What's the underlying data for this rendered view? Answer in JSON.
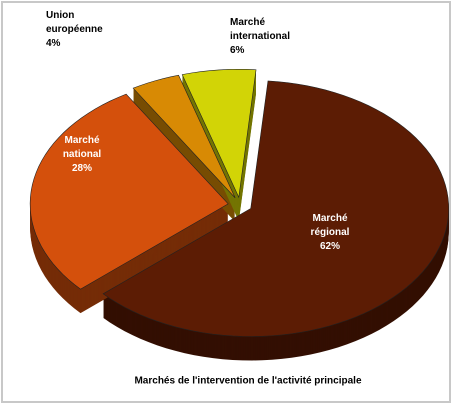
{
  "chart_data": {
    "type": "pie3d",
    "title": "Marchés de l'intervention de l'activité principale",
    "categories": [
      "Marché régional",
      "Marché national",
      "Union européenne",
      "Marché international"
    ],
    "values": [
      62,
      28,
      4,
      6
    ],
    "value_labels": [
      "62%",
      "28%",
      "4%",
      "6%"
    ],
    "colors": [
      "#5c1c04",
      "#d4500c",
      "#d88a04",
      "#d2d406"
    ]
  }
}
